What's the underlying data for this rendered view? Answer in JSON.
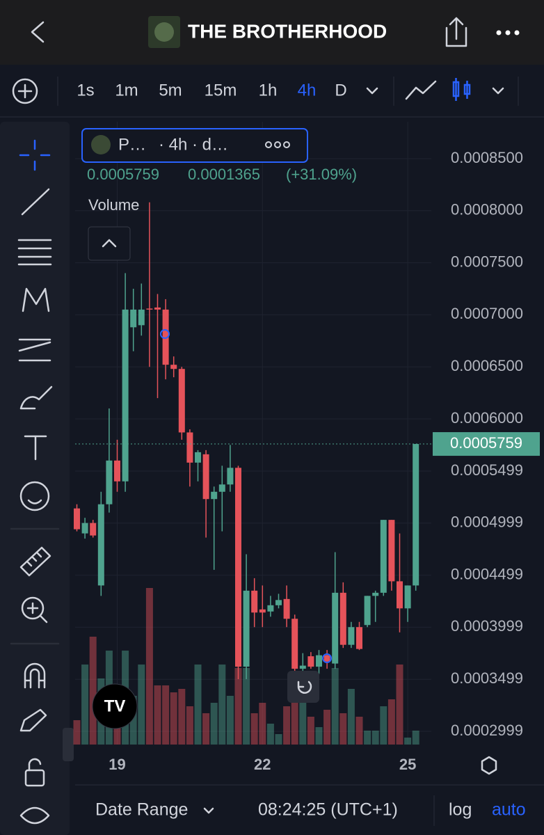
{
  "header": {
    "title": "THE BROTHERHOOD"
  },
  "toolbar": {
    "timeframes": [
      "1s",
      "1m",
      "5m",
      "15m",
      "1h",
      "4h",
      "D"
    ],
    "active_index": 5
  },
  "chart_data": {
    "type": "candlestick",
    "legend_symbol": "P…",
    "legend_detail": "· 4h · d…",
    "readout_change": "0.0001365",
    "readout_percent": "(+31.09%)",
    "volume_label": "Volume",
    "categories": [
      null,
      null,
      null,
      null,
      null,
      "19",
      null,
      null,
      null,
      null,
      null,
      null,
      null,
      null,
      null,
      null,
      null,
      null,
      null,
      null,
      null,
      null,
      null,
      "22",
      null,
      null,
      null,
      null,
      null,
      null,
      null,
      null,
      null,
      null,
      null,
      null,
      null,
      null,
      null,
      null,
      null,
      "25",
      null
    ],
    "open": [
      0.000514,
      0.00049,
      0.0005,
      0.00044,
      0.000518,
      0.00056,
      0.00054,
      0.000688,
      0.00069,
      0.000706,
      0.000707,
      0.000705,
      0.000652,
      0.000648,
      0.000587,
      0.000558,
      0.000566,
      0.000523,
      0.00053,
      0.000537,
      0.000553,
      0.000362,
      0.000435,
      0.000417,
      0.000415,
      0.000421,
      0.000427,
      0.000408,
      0.00036,
      0.000372,
      0.000362,
      0.000373,
      0.000365,
      0.000433,
      0.000383,
      0.0004,
      0.000402,
      0.00043,
      0.000433,
      0.000503,
      0.000444,
      0.000418,
      0.00044
    ],
    "high": [
      0.000518,
      0.000505,
      0.000503,
      0.00053,
      0.00061,
      0.00058,
      0.00074,
      0.000725,
      0.00073,
      0.000808,
      0.00072,
      0.000715,
      0.00066,
      0.00065,
      0.00059,
      0.00057,
      0.00057,
      0.000535,
      0.000555,
      0.000575,
      0.000555,
      0.00047,
      0.000447,
      0.00044,
      0.00043,
      0.000432,
      0.00044,
      0.000412,
      0.000375,
      0.000376,
      0.000378,
      0.000378,
      0.000472,
      0.000443,
      0.000405,
      0.000405,
      0.00043,
      0.000435,
      0.000503,
      0.000503,
      0.00049,
      0.00044,
      0.0005759
    ],
    "low": [
      0.000492,
      0.000485,
      0.000486,
      0.00043,
      0.00051,
      0.00053,
      0.00053,
      0.000665,
      0.00068,
      0.00065,
      0.00062,
      0.000638,
      0.00064,
      0.00058,
      0.000535,
      0.00054,
      0.000486,
      0.000455,
      0.000492,
      0.00053,
      0.00035,
      0.00035,
      0.0004,
      0.0004,
      0.00041,
      0.000418,
      0.0004,
      0.00035,
      0.000352,
      0.00036,
      0.000355,
      0.00036,
      0.00036,
      0.00038,
      0.00038,
      0.000378,
      0.0004,
      0.000405,
      0.00043,
      0.000435,
      0.000395,
      0.000405,
      0.000435
    ],
    "close": [
      0.000494,
      0.0005,
      0.000488,
      0.000518,
      0.00056,
      0.00054,
      0.000705,
      0.000705,
      0.000705,
      0.000705,
      0.000705,
      0.000652,
      0.000648,
      0.000587,
      0.000558,
      0.000568,
      0.000523,
      0.00053,
      0.000537,
      0.000553,
      0.000362,
      0.000435,
      0.000414,
      0.000414,
      0.000421,
      0.000426,
      0.000408,
      0.00036,
      0.000363,
      0.000362,
      0.000373,
      0.000367,
      0.000433,
      0.000383,
      0.0004,
      0.000379,
      0.00043,
      0.000433,
      0.000503,
      0.000444,
      0.000418,
      0.00044,
      0.0005759
    ],
    "volume": [
      35,
      115,
      155,
      95,
      135,
      85,
      135,
      70,
      115,
      225,
      85,
      85,
      75,
      80,
      55,
      115,
      45,
      60,
      115,
      70,
      110,
      110,
      45,
      60,
      30,
      15,
      55,
      105,
      75,
      40,
      25,
      50,
      110,
      45,
      80,
      40,
      20,
      20,
      55,
      65,
      115,
      10,
      20
    ],
    "up_color": "#4fa38e",
    "down_color": "#e5535a",
    "ylim": [
      0.0002872,
      0.0008854
    ],
    "yticks": [
      {
        "value": 0.00085,
        "label": "0.0008500"
      },
      {
        "value": 0.0008,
        "label": "0.0008000"
      },
      {
        "value": 0.00075,
        "label": "0.0007500"
      },
      {
        "value": 0.0007,
        "label": "0.0007000"
      },
      {
        "value": 0.00065,
        "label": "0.0006500"
      },
      {
        "value": 0.0006,
        "label": "0.0006000"
      },
      0.0005499,
      0.0004999,
      0.0004499,
      0.0003999,
      0.0003499,
      0.0002999
    ],
    "grid": true
  },
  "footer": {
    "date_range": "Date Range",
    "time": "08:24:25 (UTC+1)",
    "log": "log",
    "auto": "auto"
  }
}
